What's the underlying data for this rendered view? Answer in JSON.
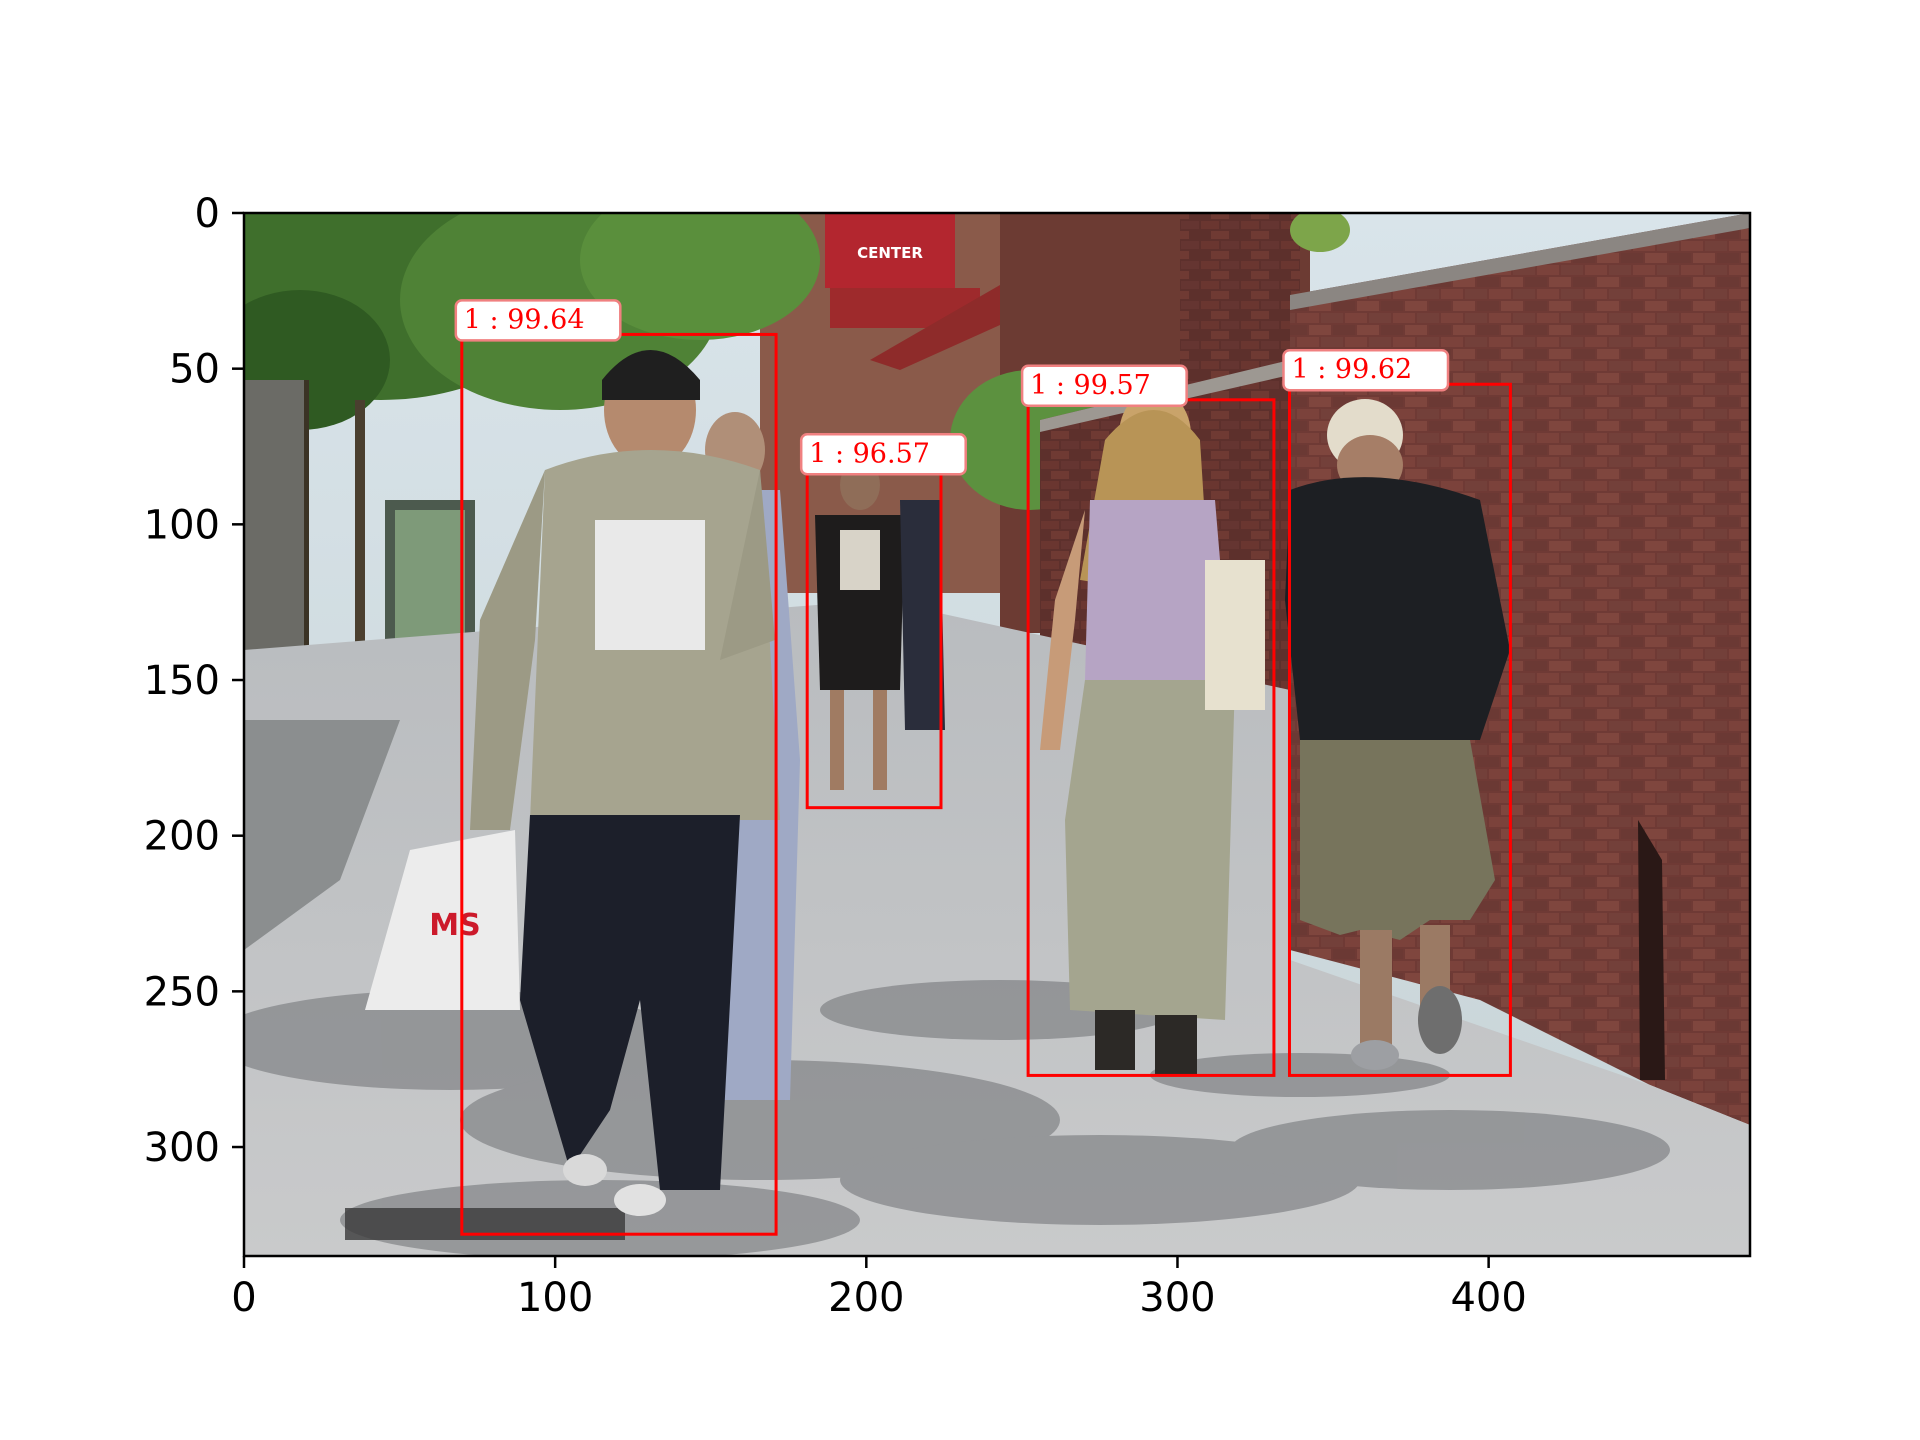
{
  "chart_data": {
    "type": "image-with-detections",
    "xlim": [
      0,
      484
    ],
    "ylim": [
      335,
      0
    ],
    "x_ticks": [
      "0",
      "100",
      "200",
      "300",
      "400"
    ],
    "y_ticks": [
      "0",
      "50",
      "100",
      "150",
      "200",
      "250",
      "300"
    ],
    "detections": [
      {
        "label": "1 : 99.64",
        "class": 1,
        "score": 99.64,
        "x1": 70,
        "y1": 39,
        "x2": 171,
        "y2": 328
      },
      {
        "label": "1 : 96.57",
        "class": 1,
        "score": 96.57,
        "x1": 181,
        "y1": 82,
        "x2": 224,
        "y2": 191
      },
      {
        "label": "1 : 99.57",
        "class": 1,
        "score": 99.57,
        "x1": 252,
        "y1": 60,
        "x2": 331,
        "y2": 277
      },
      {
        "label": "1 : 99.62",
        "class": 1,
        "score": 99.62,
        "x1": 336,
        "y1": 55,
        "x2": 407,
        "y2": 277
      }
    ],
    "box_color": "#ff0000",
    "label_background": "#ffffff"
  },
  "scene": {
    "description_free": true,
    "sign_text": "CENTER",
    "bag_text": "MS"
  }
}
